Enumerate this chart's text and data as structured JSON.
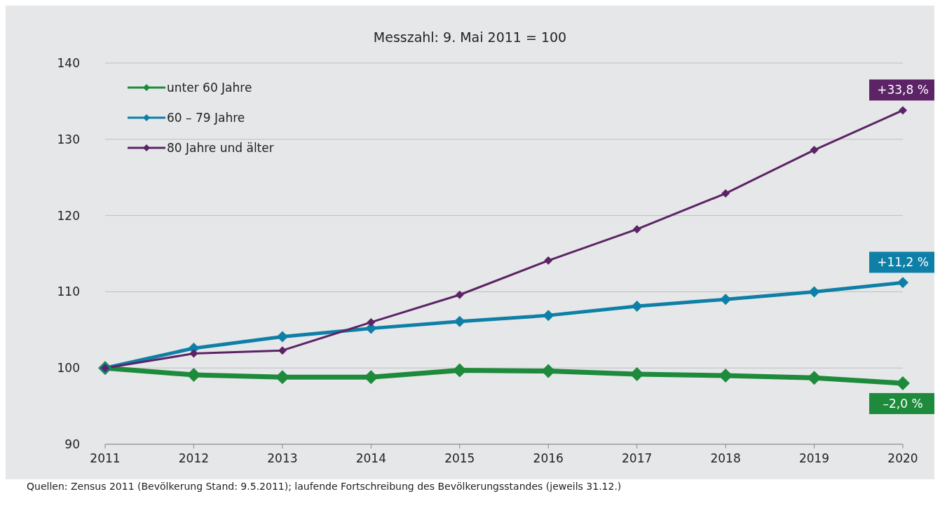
{
  "chart_data": {
    "type": "line",
    "title": "Messzahl: 9. Mai 2011 = 100",
    "categories": [
      "2011",
      "2012",
      "2013",
      "2014",
      "2015",
      "2016",
      "2017",
      "2018",
      "2019",
      "2020"
    ],
    "series": [
      {
        "name": "unter 60 Jahre",
        "color": "#1e8a3c",
        "values": [
          100,
          99.1,
          98.8,
          98.8,
          99.7,
          99.6,
          99.2,
          99.0,
          98.7,
          98.0
        ]
      },
      {
        "name": "60 – 79 Jahre",
        "color": "#0e7fa6",
        "values": [
          100,
          102.6,
          104.1,
          105.2,
          106.1,
          106.9,
          108.1,
          109.0,
          110.0,
          111.2
        ]
      },
      {
        "name": "80 Jahre und älter",
        "color": "#5c2366",
        "values": [
          100,
          101.9,
          102.3,
          106.0,
          109.6,
          114.1,
          118.2,
          122.9,
          128.6,
          133.8
        ]
      }
    ],
    "ylim": [
      90,
      140
    ],
    "yticks": [
      90,
      100,
      110,
      120,
      130,
      140
    ],
    "grid": "y",
    "legend": "top left",
    "marker": "diamond",
    "line_style": "solid",
    "annotations": [
      {
        "text": "+33,8 %",
        "x": "2020",
        "y": 133.8
      },
      {
        "text": "+11,2 %",
        "x": "2020",
        "y": 111.2
      },
      {
        "text": "–2,0 %",
        "x": "2020",
        "y": 98.0
      },
      "Quellen: Zensus 2011 (Bevölkerung Stand: 9.5.2011); laufende Fortschreibung des Bevölkerungsstandes (jeweils 31.12.)"
    ]
  }
}
